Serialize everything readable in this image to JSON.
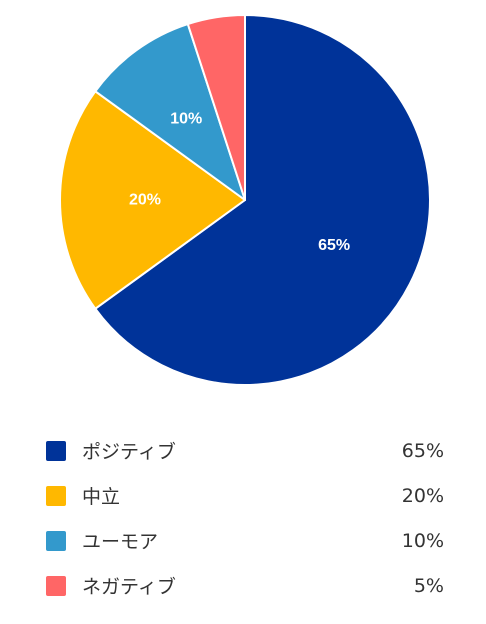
{
  "chart_data": {
    "type": "pie",
    "categories": [
      "ポジティブ",
      "中立",
      "ユーモア",
      "ネガティブ"
    ],
    "values": [
      65,
      20,
      10,
      5
    ],
    "value_labels": [
      "65%",
      "20%",
      "10%",
      "5%"
    ],
    "slice_labels": [
      "65%",
      "20%",
      "10%",
      ""
    ],
    "colors": [
      "#003399",
      "#FFB800",
      "#3399CC",
      "#FF6666"
    ],
    "start": "12 o'clock",
    "direction": "clockwise",
    "legend_position": "bottom"
  },
  "legend": {
    "items": [
      {
        "label": "ポジティブ",
        "value": "65%",
        "color": "#003399"
      },
      {
        "label": "中立",
        "value": "20%",
        "color": "#FFB800"
      },
      {
        "label": "ユーモア",
        "value": "10%",
        "color": "#3399CC"
      },
      {
        "label": "ネガティブ",
        "value": "5%",
        "color": "#FF6666"
      }
    ]
  }
}
